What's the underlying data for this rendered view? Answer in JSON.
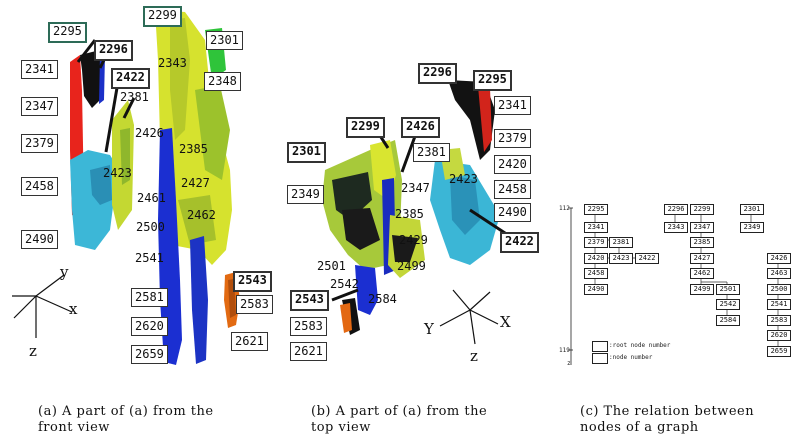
{
  "panel_a": {
    "labels": [
      "2295",
      "2296",
      "2299",
      "2301",
      "2341",
      "2343",
      "2348",
      "2422",
      "2347",
      "2381",
      "2379",
      "2426",
      "2385",
      "2458",
      "2423",
      "2427",
      "2461",
      "2462",
      "2500",
      "2490",
      "2541",
      "2543",
      "2583",
      "2581",
      "2620",
      "2621",
      "2659"
    ],
    "axes": {
      "x": "x",
      "y": "y",
      "z": "z"
    },
    "caption_line1": "(a) A part of (a) from the",
    "caption_line2": "front view"
  },
  "panel_b": {
    "labels": [
      "2296",
      "2295",
      "2341",
      "2379",
      "2299",
      "2426",
      "2301",
      "2381",
      "2420",
      "2349",
      "2347",
      "2423",
      "2458",
      "2385",
      "2490",
      "2422",
      "2429",
      "2501",
      "2499",
      "2542",
      "2543",
      "2584",
      "2583",
      "2621"
    ],
    "axes": {
      "x": "X",
      "y": "Y",
      "z": "z"
    },
    "caption_line1": "(b) A part of (a) from the",
    "caption_line2": "top view"
  },
  "panel_c": {
    "axis_top": "112",
    "axis_bottom": "119",
    "axis_letter": "z",
    "nodes": [
      "2295",
      "2296",
      "2299",
      "2301",
      "2341",
      "2343",
      "2347",
      "2349",
      "2379",
      "2381",
      "2385",
      "2420",
      "2423",
      "2422",
      "2427",
      "2426",
      "2458",
      "2462",
      "2463",
      "2490",
      "2499",
      "2501",
      "2500",
      "2542",
      "2541",
      "2584",
      "2583",
      "2620",
      "2659"
    ],
    "legend_root": ":root node number",
    "legend_node": ":node number",
    "caption_line1": "(c) The relation between",
    "caption_line2": "nodes of a graph"
  }
}
